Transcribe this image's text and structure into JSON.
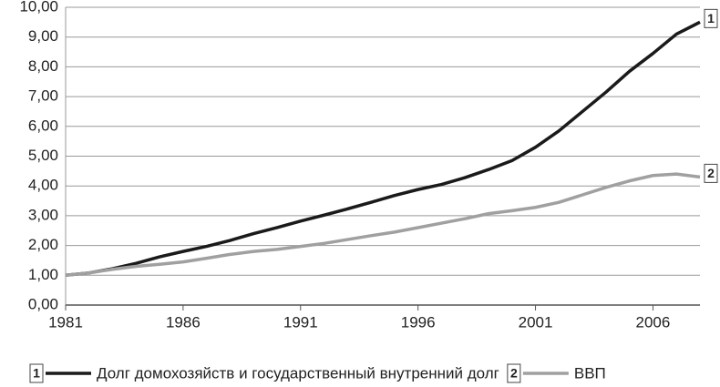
{
  "chart_data": {
    "type": "line",
    "x": [
      1981,
      1982,
      1983,
      1984,
      1985,
      1986,
      1987,
      1988,
      1989,
      1990,
      1991,
      1992,
      1993,
      1994,
      1995,
      1996,
      1997,
      1998,
      1999,
      2000,
      2001,
      2002,
      2003,
      2004,
      2005,
      2006,
      2007,
      2008
    ],
    "series": [
      {
        "name": "Долг домохозяйств и государственный внутренний долг",
        "label": "1",
        "color": "#1a1a1a",
        "values": [
          1.0,
          1.08,
          1.22,
          1.4,
          1.62,
          1.8,
          1.97,
          2.17,
          2.4,
          2.6,
          2.82,
          3.02,
          3.23,
          3.45,
          3.68,
          3.88,
          4.05,
          4.28,
          4.55,
          4.85,
          5.3,
          5.85,
          6.5,
          7.15,
          7.85,
          8.45,
          9.1,
          9.5
        ]
      },
      {
        "name": "ВВП",
        "label": "2",
        "color": "#a0a0a0",
        "values": [
          1.0,
          1.08,
          1.2,
          1.3,
          1.37,
          1.45,
          1.57,
          1.7,
          1.8,
          1.87,
          1.97,
          2.07,
          2.2,
          2.33,
          2.45,
          2.6,
          2.75,
          2.9,
          3.07,
          3.17,
          3.28,
          3.45,
          3.7,
          3.95,
          4.17,
          4.35,
          4.4,
          4.3
        ]
      }
    ],
    "xlim": [
      1981,
      2008
    ],
    "xticks": [
      1981,
      1986,
      1991,
      1996,
      2001,
      2006
    ],
    "ylim": [
      0,
      10
    ],
    "yticks": [
      {
        "value": 0,
        "label": "0,00"
      },
      {
        "value": 1,
        "label": "1,00"
      },
      {
        "value": 2,
        "label": "2,00"
      },
      {
        "value": 3,
        "label": "3,00"
      },
      {
        "value": 4,
        "label": "4,00"
      },
      {
        "value": 5,
        "label": "5,00"
      },
      {
        "value": 6,
        "label": "6,00"
      },
      {
        "value": 7,
        "label": "7,00"
      },
      {
        "value": 8,
        "label": "8,00"
      },
      {
        "value": 9,
        "label": "9,00"
      },
      {
        "value": 10,
        "label": "10,00"
      }
    ],
    "grid": true,
    "legend": "bottom"
  }
}
